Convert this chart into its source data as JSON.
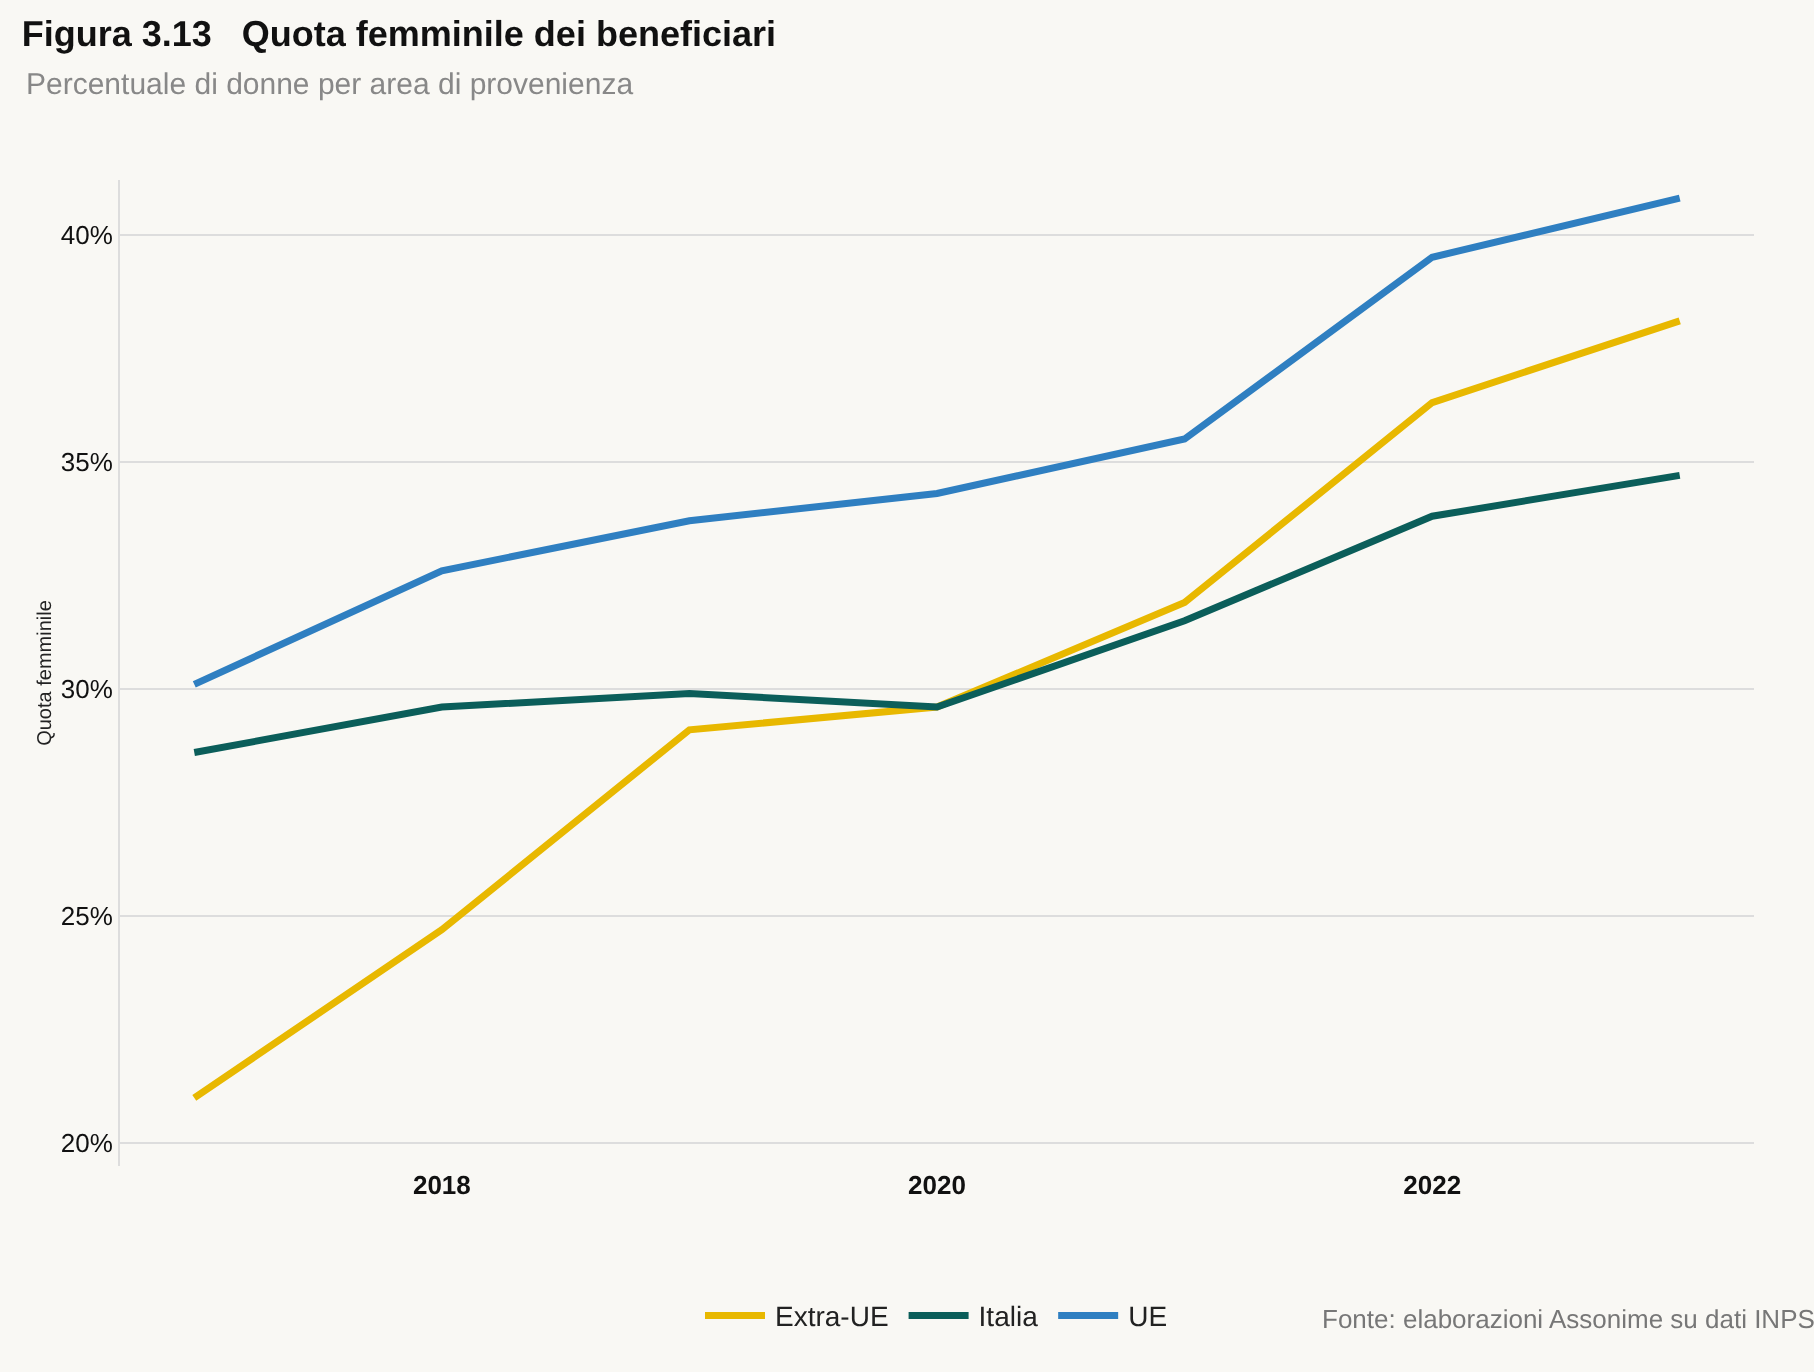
{
  "chart_data": {
    "type": "line",
    "title": "Figura 3.13   Quota femminile dei beneficiari",
    "subtitle": "Percentuale di donne per area di provenienza",
    "ylabel": "Quota femminile",
    "x": [
      2017,
      2018,
      2019,
      2020,
      2021,
      2022,
      2023
    ],
    "series": [
      {
        "name": "Extra-UE",
        "color": "#e8b800",
        "values": [
          21.0,
          24.7,
          29.1,
          29.6,
          31.9,
          36.3,
          38.1
        ]
      },
      {
        "name": "Italia",
        "color": "#0b5e5a",
        "values": [
          28.6,
          29.6,
          29.9,
          29.6,
          31.5,
          33.8,
          34.7
        ]
      },
      {
        "name": "UE",
        "color": "#2f7fc1",
        "values": [
          30.1,
          32.6,
          33.7,
          34.3,
          35.5,
          39.5,
          40.8
        ]
      }
    ],
    "xlim": [
      2016.7,
      2023.3
    ],
    "xticks": [
      2018,
      2020,
      2022
    ],
    "ylim": [
      19.5,
      41.2
    ],
    "yticks": [
      {
        "value": 20,
        "label": "20%"
      },
      {
        "value": 25,
        "label": "25%"
      },
      {
        "value": 30,
        "label": "30%"
      },
      {
        "value": 35,
        "label": "35%"
      },
      {
        "value": 40,
        "label": "40%"
      }
    ],
    "grid": "y",
    "legend": "bottom",
    "marker": "none",
    "line_style": "solid",
    "annotations": [
      "Fonte: elaborazioni Assonime su dati INPS"
    ]
  }
}
